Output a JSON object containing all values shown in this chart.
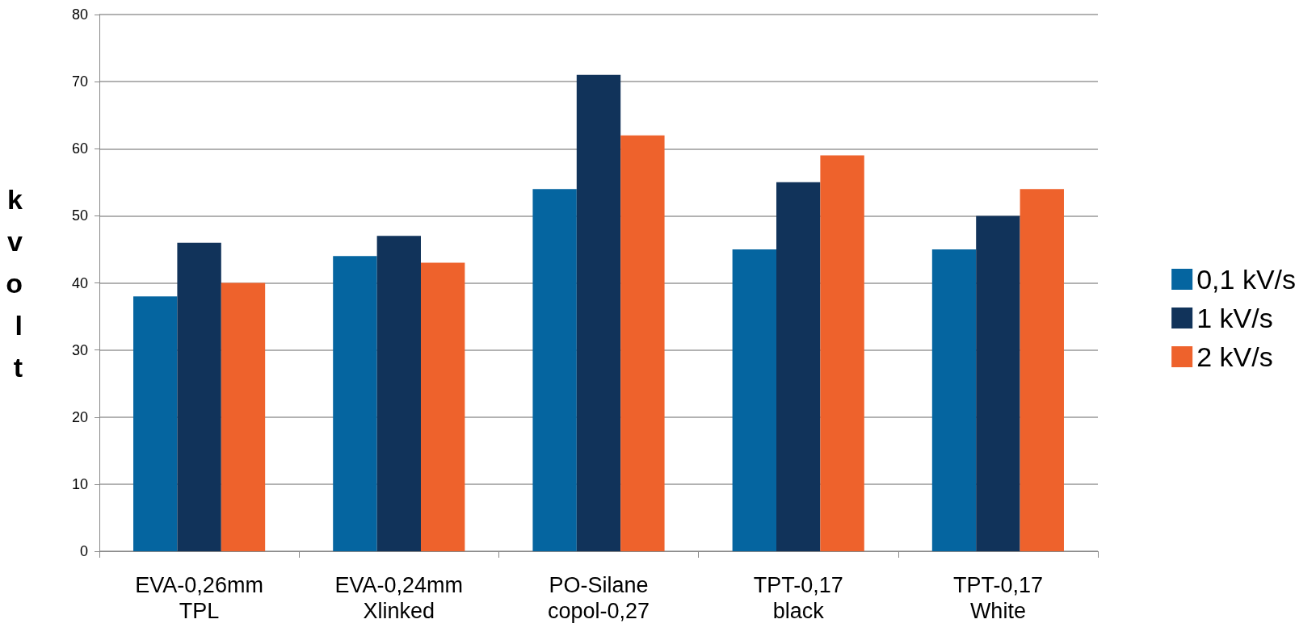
{
  "chart_data": {
    "type": "bar",
    "ylabel": "kvolt",
    "categories": [
      "EVA-0,26mm\nTPL",
      "EVA-0,24mm\nXlinked",
      "PO-Silane\ncopol-0,27",
      "TPT-0,17\nblack",
      "TPT-0,17\nWhite"
    ],
    "series": [
      {
        "name": "0,1 kV/s",
        "color": "#0565a0",
        "values": [
          38,
          44,
          54,
          45,
          45
        ]
      },
      {
        "name": "1 kV/s",
        "color": "#11335a",
        "values": [
          46,
          47,
          71,
          55,
          50
        ]
      },
      {
        "name": "2 kV/s",
        "color": "#ee622c",
        "values": [
          40,
          43,
          62,
          59,
          54
        ]
      }
    ],
    "ylim": [
      0,
      80
    ],
    "yticks": [
      0,
      10,
      20,
      30,
      40,
      50,
      60,
      70,
      80
    ],
    "grid": "y",
    "legend": "right"
  }
}
